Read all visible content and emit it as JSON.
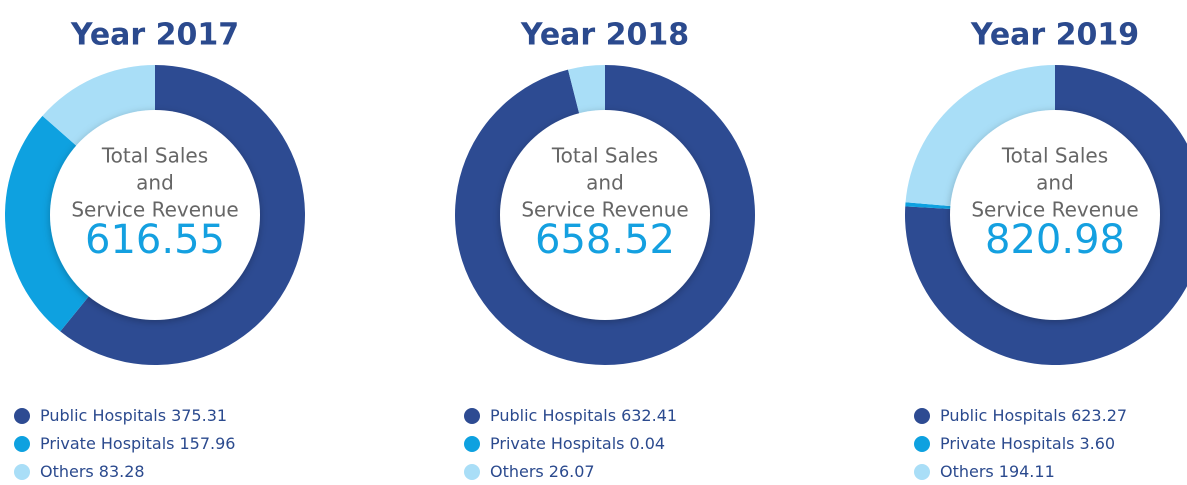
{
  "chart_data": [
    {
      "type": "donut",
      "title": "Year 2017",
      "center_text": [
        "Total Sales",
        "and",
        "Service Revenue"
      ],
      "total": 616.55,
      "categories": [
        "Public Hospitals",
        "Private Hospitals",
        "Others"
      ],
      "values": [
        375.31,
        157.96,
        83.28
      ],
      "value_labels": [
        "375.31",
        "157.96",
        "83.28"
      ],
      "colors": [
        "#2d4b92",
        "#0ea1e0",
        "#a9def7"
      ]
    },
    {
      "type": "donut",
      "title": "Year 2018",
      "center_text": [
        "Total Sales",
        "and",
        "Service Revenue"
      ],
      "total": 658.52,
      "categories": [
        "Public Hospitals",
        "Private Hospitals",
        "Others"
      ],
      "values": [
        632.41,
        0.04,
        26.07
      ],
      "value_labels": [
        "632.41",
        "0.04",
        "26.07"
      ],
      "colors": [
        "#2d4b92",
        "#0ea1e0",
        "#a9def7"
      ]
    },
    {
      "type": "donut",
      "title": "Year 2019",
      "center_text": [
        "Total Sales",
        "and",
        "Service Revenue"
      ],
      "total": 820.98,
      "categories": [
        "Public Hospitals",
        "Private Hospitals",
        "Others"
      ],
      "values": [
        623.27,
        3.6,
        194.11
      ],
      "value_labels": [
        "623.27",
        "3.60",
        "194.11"
      ],
      "colors": [
        "#2d4b92",
        "#0ea1e0",
        "#a9def7"
      ]
    }
  ]
}
